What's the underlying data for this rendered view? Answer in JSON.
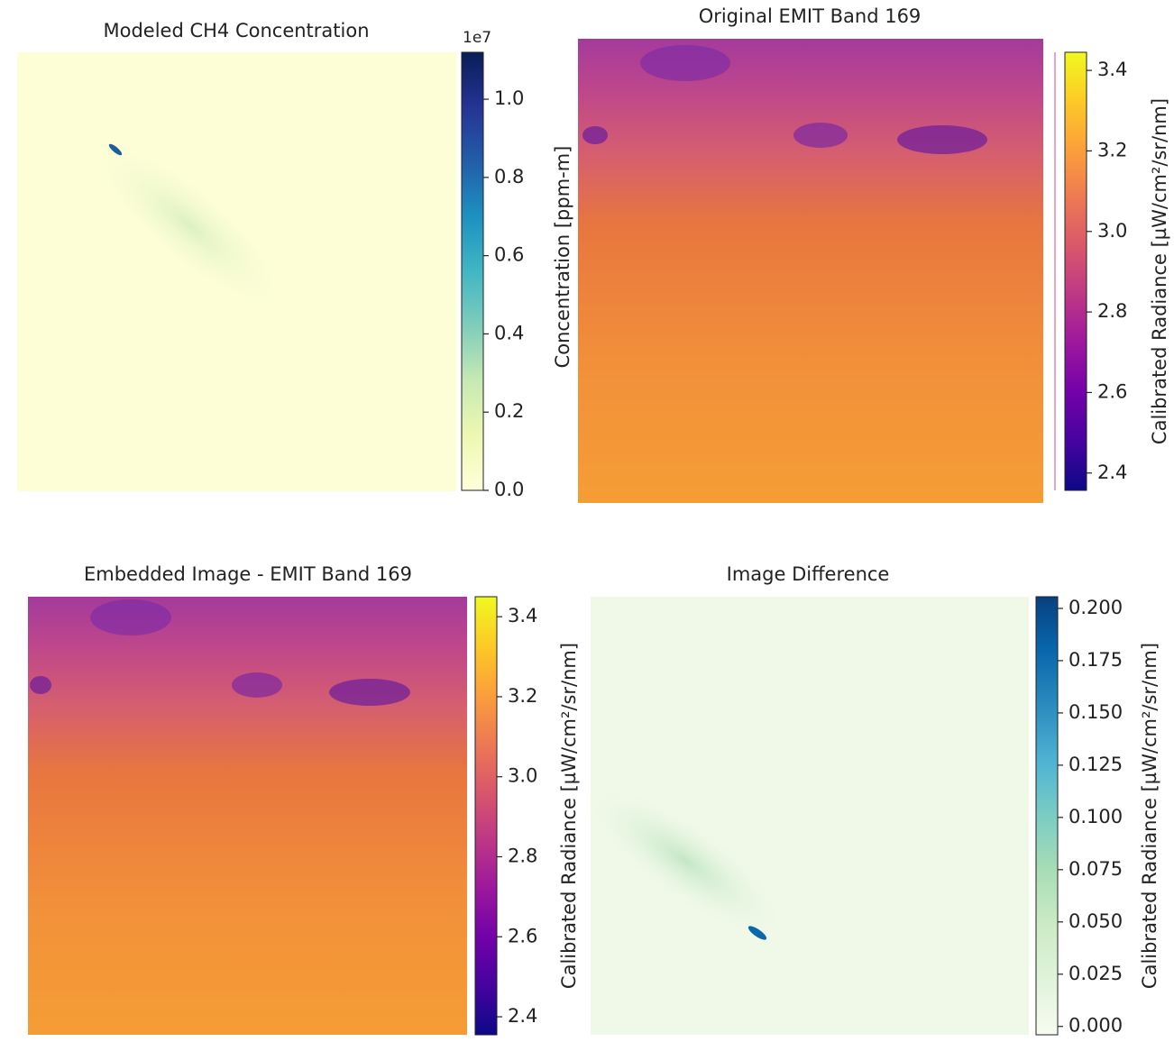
{
  "chart_data": [
    {
      "type": "heatmap",
      "title": "Modeled CH4 Concentration",
      "colorbar_label": "Concentration [ppm-m]",
      "offset_text": "1e7",
      "clim": [
        0,
        1.12
      ],
      "cticks": [
        {
          "value": 0,
          "label": "0.0"
        },
        0.2,
        0.4,
        0.6,
        0.8,
        {
          "value": 1,
          "label": "1.0"
        }
      ],
      "colors": [
        "#ffffd9",
        "#edf8b1",
        "#c7e9b4",
        "#7fcdbb",
        "#41b6c4",
        "#1d91c0",
        "#225ea8",
        "#253494",
        "#081d58"
      ]
    },
    {
      "type": "heatmap",
      "title": "Original EMIT Band 169",
      "colorbar_label": "Calibrated Radiance [µW/cm²/sr/nm]",
      "clim": [
        2.357,
        3.445
      ],
      "cticks": [
        2.4,
        2.6,
        2.8,
        {
          "value": 3,
          "label": "3.0"
        },
        3.2,
        3.4
      ],
      "colors": [
        "#0d0887",
        "#46039f",
        "#7201a8",
        "#9c179e",
        "#bd3786",
        "#d8576b",
        "#ed7953",
        "#fb9f3a",
        "#fdca26",
        "#f0f921"
      ]
    },
    {
      "type": "heatmap",
      "title": "Embedded Image - EMIT Band 169",
      "colorbar_label": "Calibrated Radiance [µW/cm²/sr/nm]",
      "clim": [
        2.355,
        3.45
      ],
      "cticks": [
        2.4,
        2.6,
        2.8,
        {
          "value": 3,
          "label": "3.0"
        },
        3.2,
        3.4
      ],
      "colors": [
        "#0d0887",
        "#46039f",
        "#7201a8",
        "#9c179e",
        "#bd3786",
        "#d8576b",
        "#ed7953",
        "#fb9f3a",
        "#fdca26",
        "#f0f921"
      ]
    },
    {
      "type": "heatmap",
      "title": "Image Difference",
      "colorbar_label": "Calibrated Radiance [µW/cm²/sr/nm]",
      "clim": [
        -0.004,
        0.2056
      ],
      "cticks": [
        {
          "value": 0,
          "label": "0.000"
        },
        0.025,
        {
          "value": 0.05,
          "label": "0.050"
        },
        0.075,
        {
          "value": 0.1,
          "label": "0.100"
        },
        0.125,
        {
          "value": 0.15,
          "label": "0.150"
        },
        0.175,
        {
          "value": 0.2,
          "label": "0.200"
        }
      ],
      "colors": [
        "#f7fcf0",
        "#e0f3db",
        "#ccebc5",
        "#a8ddb5",
        "#7bccc4",
        "#4eb3d3",
        "#2b8cbe",
        "#0868ac",
        "#084081"
      ]
    }
  ]
}
